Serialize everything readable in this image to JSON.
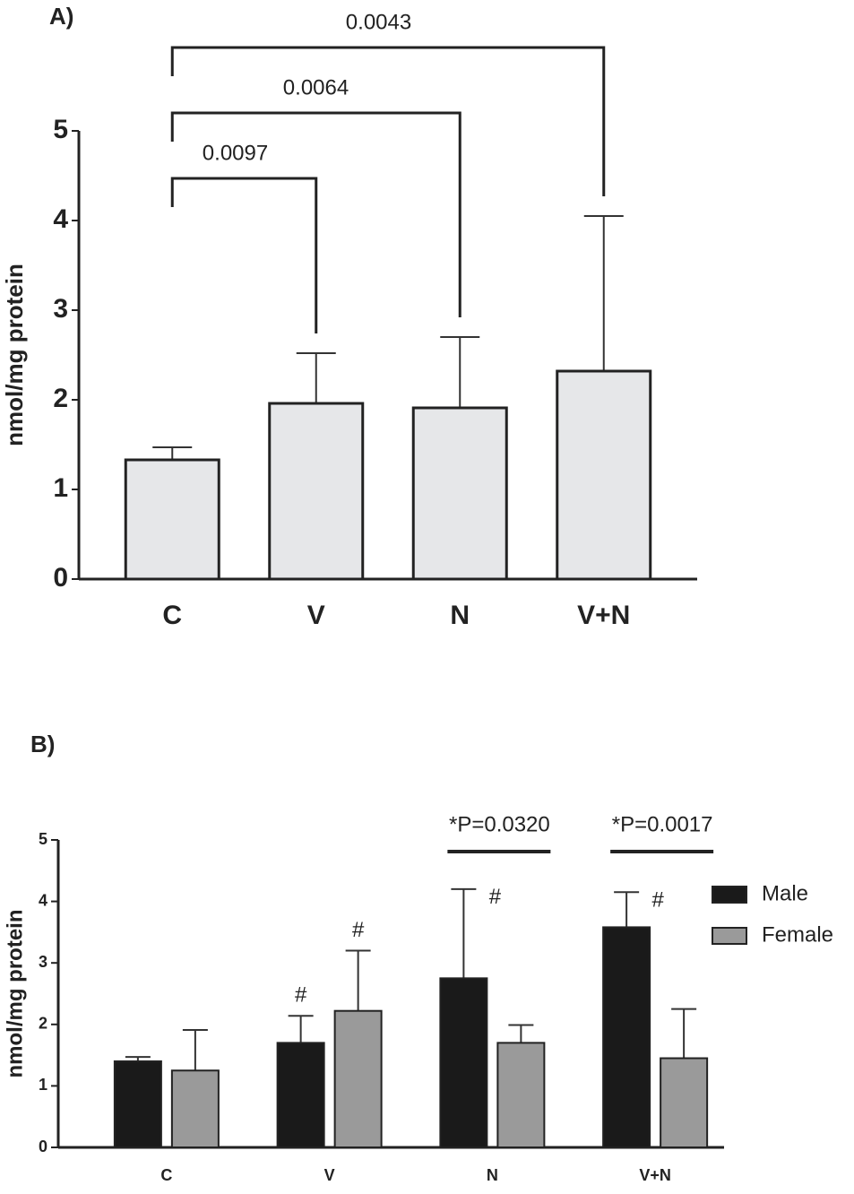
{
  "chart_data": [
    {
      "type": "bar",
      "title": "A)",
      "y_label": "nmol/mg protein",
      "categories": [
        "C",
        "V",
        "N",
        "V+N"
      ],
      "values": [
        1.33,
        1.96,
        1.91,
        2.32
      ],
      "errors": [
        0.14,
        0.56,
        0.79,
        1.73
      ],
      "color": "#e6e7e9",
      "annotations": [
        "0.0097",
        "0.0064",
        "0.0043"
      ],
      "ylim": [
        0,
        5
      ],
      "yticks": [
        0,
        1,
        2,
        3,
        4,
        5
      ]
    },
    {
      "type": "grouped_bar",
      "title": "B)",
      "y_label": "nmol/mg protein",
      "categories": [
        "C",
        "V",
        "N",
        "V+N"
      ],
      "series": [
        {
          "name": "Male",
          "color": "#1a1a1a",
          "values": [
            1.4,
            1.7,
            2.75,
            3.58
          ],
          "errors": [
            0.07,
            0.44,
            1.45,
            0.57
          ],
          "markers": [
            null,
            "#",
            "#",
            "#"
          ]
        },
        {
          "name": "Female",
          "color": "#9a9a9a",
          "values": [
            1.25,
            2.22,
            1.7,
            1.45
          ],
          "errors": [
            0.66,
            0.98,
            0.29,
            0.8
          ],
          "markers": [
            null,
            "#",
            null,
            null
          ]
        }
      ],
      "annotations": [
        null,
        null,
        "*P=0.0320",
        "*P=0.0017"
      ],
      "ylim": [
        0,
        5
      ],
      "yticks": [
        0,
        1,
        2,
        3,
        4,
        5
      ],
      "legend": "right"
    }
  ]
}
